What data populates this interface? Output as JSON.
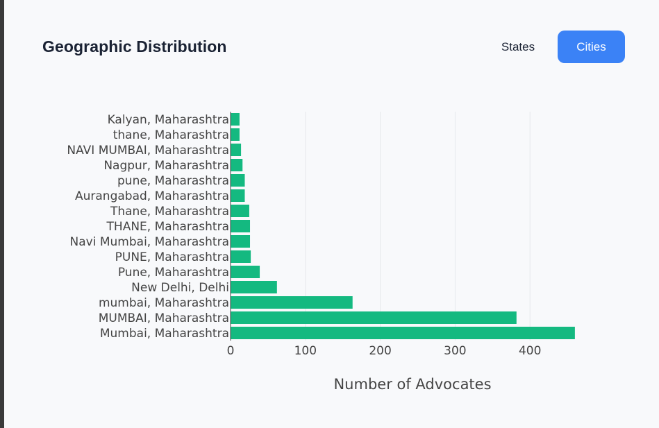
{
  "header": {
    "title": "Geographic Distribution",
    "toggle_states": "States",
    "toggle_cities": "Cities"
  },
  "colors": {
    "bar": "#14b980",
    "accent": "#3b82f6",
    "grid": "#e6e8ec"
  },
  "chart_data": {
    "type": "bar",
    "orientation": "horizontal",
    "title": "",
    "xlabel": "Number of Advocates",
    "ylabel": "",
    "xlim": [
      0,
      460
    ],
    "xticks": [
      0,
      100,
      200,
      300,
      400
    ],
    "grid": true,
    "categories": [
      "Kalyan, Maharashtra",
      "thane, Maharashtra",
      "NAVI MUMBAI, Maharashtra",
      "Nagpur, Maharashtra",
      "pune, Maharashtra",
      "Aurangabad, Maharashtra",
      "Thane, Maharashtra",
      "THANE, Maharashtra",
      "Navi Mumbai, Maharashtra",
      "PUNE, Maharashtra",
      "Pune, Maharashtra",
      "New Delhi, Delhi",
      "mumbai, Maharashtra",
      "MUMBAI, Maharashtra",
      "Mumbai, Maharashtra"
    ],
    "values": [
      12,
      12,
      14,
      16,
      19,
      19,
      25,
      26,
      26,
      27,
      39,
      62,
      163,
      382,
      460
    ]
  }
}
